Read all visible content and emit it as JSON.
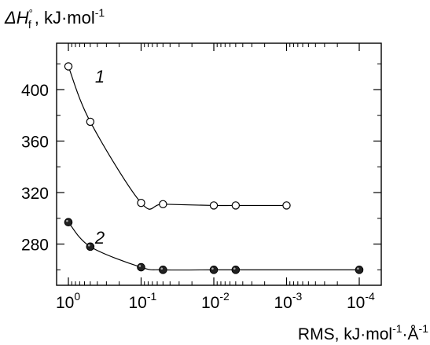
{
  "chart_data": {
    "type": "line",
    "ylabel": "ΔH°f , kJ·mol-1",
    "ylabel_parts": {
      "symbol": "ΔH",
      "sup": "°",
      "sub": "f",
      "unit": ", kJ·mol",
      "exp": "-1"
    },
    "xlabel": "RMS, kJ·mol-1·Å-1",
    "xlabel_parts": {
      "text": "RMS, kJ·mol",
      "exp1": "-1",
      "dot": "·Å",
      "exp2": "-1"
    },
    "x_scale": "log",
    "x_reversed": true,
    "x_ticks": [
      {
        "value": 1,
        "base": "10",
        "exp": "0"
      },
      {
        "value": 0.1,
        "base": "10",
        "exp": "-1"
      },
      {
        "value": 0.01,
        "base": "10",
        "exp": "-2"
      },
      {
        "value": 0.001,
        "base": "10",
        "exp": "-3"
      },
      {
        "value": 0.0001,
        "base": "10",
        "exp": "-4"
      }
    ],
    "xlim": [
      1.1,
      9e-05
    ],
    "ylim": [
      248,
      436
    ],
    "y_ticks": [
      280,
      320,
      360,
      400
    ],
    "series": [
      {
        "name": "1",
        "marker": "open",
        "x": [
          1,
          0.5,
          0.1,
          0.05,
          0.01,
          0.005,
          0.001
        ],
        "values": [
          418,
          375,
          312,
          311,
          310,
          310,
          310
        ]
      },
      {
        "name": "2",
        "marker": "filled",
        "x": [
          1,
          0.5,
          0.1,
          0.05,
          0.01,
          0.005,
          0.0001
        ],
        "values": [
          297,
          278,
          262,
          260,
          260,
          260,
          260
        ]
      }
    ]
  }
}
